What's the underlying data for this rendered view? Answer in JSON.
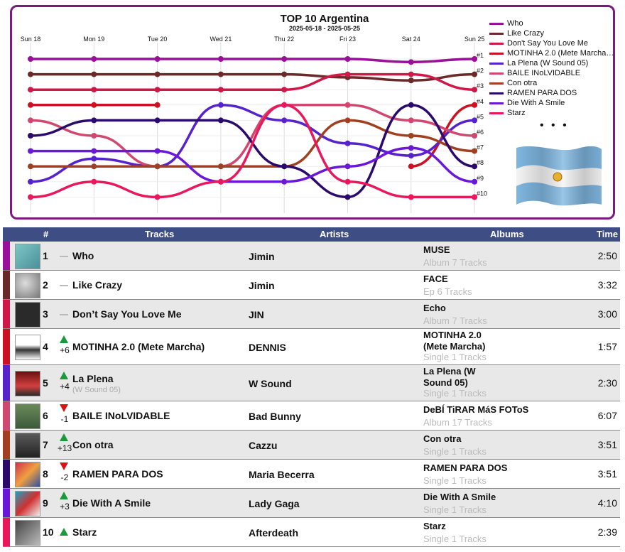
{
  "chart": {
    "title": "TOP 10 Argentina",
    "subtitle": "2025-05-18 - 2025-05-25",
    "days": [
      "Sun 18",
      "Mon 19",
      "Tue 20",
      "Wed 21",
      "Thu 22",
      "Fri 23",
      "Sat 24",
      "Sun 25"
    ],
    "rank_labels": [
      "#1",
      "#2",
      "#3",
      "#4",
      "#5",
      "#6",
      "#7",
      "#8",
      "#9",
      "#10"
    ],
    "legend_more": "• • •"
  },
  "chart_data": {
    "type": "line",
    "title": "TOP 10 Argentina",
    "subtitle": "2025-05-18 - 2025-05-25",
    "x": [
      "Sun 18",
      "Mon 19",
      "Tue 20",
      "Wed 21",
      "Thu 22",
      "Fri 23",
      "Sat 24",
      "Sun 25"
    ],
    "y_inverted": true,
    "ylim": [
      1,
      10
    ],
    "legend_position": "right",
    "series": [
      {
        "name": "Who",
        "color": "#9b109b",
        "ranks": [
          1,
          1,
          1,
          1,
          1,
          1,
          1.2,
          1
        ]
      },
      {
        "name": "Like Crazy",
        "color": "#6b2a2a",
        "ranks": [
          2,
          2,
          2,
          2,
          2,
          2.2,
          2.4,
          2
        ]
      },
      {
        "name": "Don't Say You Love Me",
        "color": "#d01848",
        "ranks": [
          3,
          3,
          3,
          3,
          3,
          2,
          2,
          3
        ]
      },
      {
        "name": "MOTINHA 2.0 (Mete Marcha…",
        "color": "#cc1122",
        "ranks": [
          4,
          4,
          4,
          null,
          null,
          null,
          8,
          4
        ]
      },
      {
        "name": "La Plena (W Sound 05)",
        "color": "#5522cc",
        "ranks": [
          9,
          7.5,
          8,
          4,
          5,
          6.5,
          7.3,
          5
        ]
      },
      {
        "name": "BAILE INoLVIDABLE",
        "color": "#d04870",
        "ranks": [
          5,
          6,
          8,
          8,
          4,
          4,
          5,
          6
        ]
      },
      {
        "name": "Con otra",
        "color": "#a04020",
        "ranks": [
          8,
          8,
          8,
          8,
          8,
          5,
          6,
          7
        ]
      },
      {
        "name": "RAMEN PARA DOS",
        "color": "#2a0a6b",
        "ranks": [
          6,
          5,
          5,
          5,
          8,
          10,
          4,
          8
        ]
      },
      {
        "name": "Die With A Smile",
        "color": "#6a18d8",
        "ranks": [
          7,
          7,
          7,
          9,
          9,
          8,
          6.8,
          9
        ]
      },
      {
        "name": "Starz",
        "color": "#e8185a",
        "ranks": [
          10,
          9,
          10,
          9,
          4,
          9,
          10,
          10
        ]
      }
    ]
  },
  "table": {
    "headers": {
      "rank": "#",
      "tracks": "Tracks",
      "artists": "Artists",
      "albums": "Albums",
      "time": "Time"
    },
    "rows": [
      {
        "rank": "1",
        "change": "",
        "dir": "same",
        "track": "Who",
        "track_sub": "",
        "artist": "Jimin",
        "album": "MUSE",
        "album_sub": "Album 7 Tracks",
        "time": "2:50",
        "color": "#9b109b",
        "thumb": "muse"
      },
      {
        "rank": "2",
        "change": "",
        "dir": "same",
        "track": "Like Crazy",
        "track_sub": "",
        "artist": "Jimin",
        "album": "FACE",
        "album_sub": "Ep 6 Tracks",
        "time": "3:32",
        "color": "#6b2a2a",
        "thumb": "face"
      },
      {
        "rank": "3",
        "change": "",
        "dir": "same",
        "track": "Don’t Say You Love Me",
        "track_sub": "",
        "artist": "JIN",
        "album": "Echo",
        "album_sub": "Album 7 Tracks",
        "time": "3:00",
        "color": "#d01848",
        "thumb": "echo"
      },
      {
        "rank": "4",
        "change": "+6",
        "dir": "up",
        "track": "MOTINHA 2.0 (Mete Marcha)",
        "track_sub": "",
        "artist": "DENNIS",
        "album": "MOTINHA 2.0 (Mete Marcha)",
        "album_sub": "Single 1 Tracks",
        "time": "1:57",
        "color": "#cc1122",
        "thumb": "moto"
      },
      {
        "rank": "5",
        "change": "+4",
        "dir": "up",
        "track": "La Plena",
        "track_sub": "(W Sound 05)",
        "artist": "W Sound",
        "album": "La Plena (W Sound 05)",
        "album_sub": "Single 1 Tracks",
        "time": "2:30",
        "color": "#5522cc",
        "thumb": "plena"
      },
      {
        "rank": "6",
        "change": "-1",
        "dir": "down",
        "track": "BAILE INoLVIDABLE",
        "track_sub": "",
        "artist": "Bad Bunny",
        "album": "DeBÍ TiRAR MáS FOToS",
        "album_sub": "Album 17 Tracks",
        "time": "6:07",
        "color": "#d04870",
        "thumb": "baile"
      },
      {
        "rank": "7",
        "change": "+13",
        "dir": "up",
        "track": "Con otra",
        "track_sub": "",
        "artist": "Cazzu",
        "album": "Con otra",
        "album_sub": "Single 1 Tracks",
        "time": "3:51",
        "color": "#a04020",
        "thumb": "conotra"
      },
      {
        "rank": "8",
        "change": "-2",
        "dir": "down",
        "track": "RAMEN PARA DOS",
        "track_sub": "",
        "artist": "Maria Becerra",
        "album": "RAMEN PARA DOS",
        "album_sub": "Single 1 Tracks",
        "time": "3:51",
        "color": "#2a0a6b",
        "thumb": "ramen"
      },
      {
        "rank": "9",
        "change": "+3",
        "dir": "up",
        "track": "Die With A Smile",
        "track_sub": "",
        "artist": "Lady Gaga",
        "album": "Die With A Smile",
        "album_sub": "Single 1 Tracks",
        "time": "4:10",
        "color": "#6a18d8",
        "thumb": "smile"
      },
      {
        "rank": "10",
        "change": "",
        "dir": "up",
        "track": "Starz",
        "track_sub": "",
        "artist": "Afterdeath",
        "album": "Starz",
        "album_sub": "Single 1 Tracks",
        "time": "2:39",
        "color": "#e8185a",
        "thumb": "starz"
      }
    ]
  }
}
